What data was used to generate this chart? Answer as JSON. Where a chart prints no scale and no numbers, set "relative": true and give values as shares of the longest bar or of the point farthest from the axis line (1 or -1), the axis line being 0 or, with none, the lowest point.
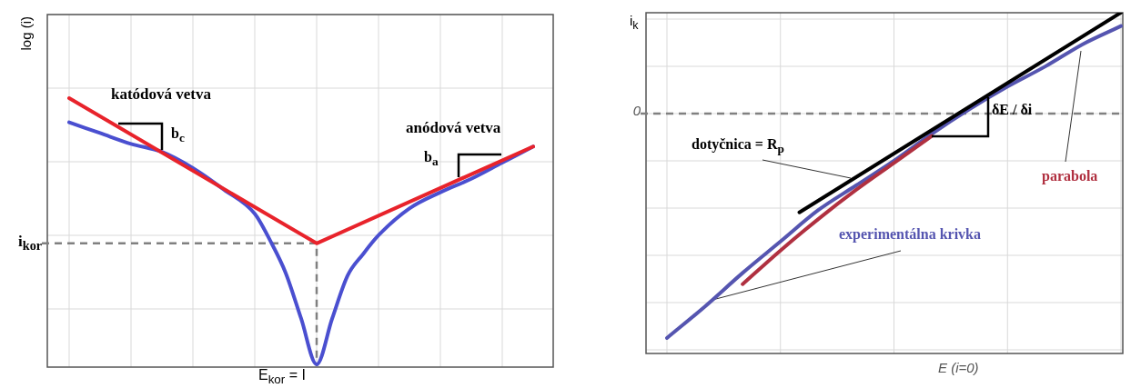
{
  "chart_data": [
    {
      "type": "line",
      "relative": true,
      "ylabel": "log (i)",
      "xlabel": "E$_{kor}$ = I",
      "grid": true,
      "legend": false,
      "marker": "none",
      "categories": [
        null,
        null,
        null,
        null,
        null,
        null,
        null,
        null,
        null,
        null,
        null,
        null,
        null,
        null,
        null,
        null,
        null,
        null,
        null,
        null,
        null,
        null,
        null,
        null,
        null,
        null,
        null,
        null,
        null,
        null,
        null
      ],
      "series": [
        {
          "color": "#e8232b",
          "values": [
            1,
            null,
            null,
            null,
            null,
            null,
            null,
            null,
            null,
            null,
            null,
            null,
            null,
            null,
            null,
            null,
            0.46,
            null,
            null,
            null,
            null,
            null,
            null,
            null,
            null,
            null,
            null,
            null,
            null,
            null,
            0.82
          ]
        },
        {
          "color": "#4a4fd0",
          "values": [
            0.91,
            null,
            0.87,
            null,
            0.83,
            null,
            0.8,
            null,
            0.74,
            null,
            0.66,
            null,
            0.57,
            0.47,
            0.35,
            0.18,
            0.01,
            0.18,
            0.34,
            0.42,
            0.49,
            null,
            0.59,
            null,
            0.65,
            null,
            0.7,
            null,
            0.76,
            null,
            0.82
          ]
        }
      ],
      "ref_lines": [
        {
          "axis": "y",
          "value": 0.46,
          "label": "i$_{kor}$",
          "color": "#808080",
          "line_style": "dashed"
        }
      ],
      "annotations": [
        "katódová vetva",
        "b$_{c}$",
        "anódová vetva",
        "b$_{a}$"
      ]
    },
    {
      "type": "line",
      "relative": true,
      "ylabel": "i$_{k}$",
      "grid": true,
      "legend": false,
      "marker": "none",
      "categories": [
        null,
        null,
        null,
        null,
        null,
        null,
        null,
        null,
        null,
        null,
        null,
        null,
        null,
        null,
        null,
        null,
        null,
        null,
        null,
        null,
        null,
        null,
        null,
        null,
        null
      ],
      "series": [
        {
          "name": "dotyčnica = R$_{p}$",
          "color": "#000000",
          "values": [
            null,
            null,
            null,
            null,
            null,
            null,
            null,
            -0.44,
            null,
            null,
            null,
            null,
            null,
            null,
            null,
            null,
            null,
            null,
            null,
            null,
            null,
            null,
            null,
            null,
            0.45
          ]
        },
        {
          "name": "parabola",
          "color": "#b03040",
          "values": [
            null,
            null,
            null,
            null,
            -0.76,
            null,
            -0.61,
            null,
            -0.47,
            null,
            -0.34,
            null,
            -0.22,
            null,
            -0.1,
            null,
            null,
            null,
            null,
            null,
            null,
            null,
            null,
            null,
            null
          ]
        },
        {
          "name": "experimentálna krivka",
          "color": "#5555b0",
          "values": [
            -1,
            null,
            -0.86,
            null,
            -0.71,
            null,
            -0.57,
            null,
            -0.43,
            null,
            -0.32,
            null,
            -0.21,
            null,
            -0.09,
            null,
            0.02,
            null,
            0.12,
            null,
            0.21,
            null,
            0.31,
            null,
            0.39
          ]
        }
      ],
      "ref_lines": [
        {
          "axis": "y",
          "value": 0,
          "label": "0",
          "color": "#808080",
          "line_style": "dashed"
        }
      ],
      "annotations": [
        "δE / δi",
        "E (i=0)"
      ]
    }
  ]
}
